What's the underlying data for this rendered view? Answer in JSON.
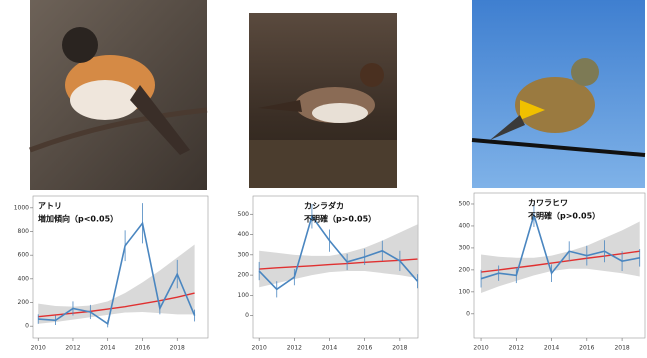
{
  "chart_data": [
    {
      "type": "line",
      "title": "アトリ",
      "subtitle": "増加傾向（p<0.05）",
      "x": [
        2010,
        2011,
        2012,
        2013,
        2014,
        2015,
        2016,
        2017,
        2018,
        2019
      ],
      "series": [
        {
          "color": "#4a86c0",
          "values": [
            60,
            50,
            150,
            120,
            20,
            680,
            870,
            150,
            440,
            90
          ],
          "errors": [
            40,
            40,
            60,
            60,
            30,
            130,
            170,
            50,
            120,
            50
          ]
        }
      ],
      "trend": [
        80,
        95,
        110,
        125,
        145,
        165,
        190,
        215,
        245,
        280
      ],
      "trend_lower": [
        20,
        35,
        55,
        75,
        95,
        115,
        120,
        110,
        100,
        100
      ],
      "trend_upper": [
        190,
        170,
        165,
        175,
        210,
        280,
        370,
        470,
        580,
        690
      ],
      "trend_color": "#e03030",
      "band_color": "#d9d9d9",
      "xlim": [
        2009.7,
        2019.77
      ],
      "xticks": [
        2010,
        2012,
        2014,
        2016,
        2018
      ],
      "ylim": [
        -100,
        1100
      ],
      "yticks": [
        0,
        200,
        400,
        600,
        800,
        1000
      ]
    },
    {
      "type": "line",
      "title": "カシラダカ",
      "subtitle": "不明確（p>0.05）",
      "x": [
        2010,
        2011,
        2012,
        2013,
        2014,
        2015,
        2016,
        2017,
        2018,
        2019
      ],
      "series": [
        {
          "color": "#4a86c0",
          "values": [
            220,
            130,
            190,
            490,
            370,
            265,
            290,
            320,
            270,
            170
          ],
          "errors": [
            45,
            40,
            40,
            60,
            55,
            40,
            40,
            50,
            50,
            35
          ]
        }
      ],
      "trend": [
        230,
        236,
        241,
        246,
        252,
        257,
        263,
        268,
        273,
        279
      ],
      "trend_lower": [
        140,
        160,
        180,
        200,
        215,
        220,
        220,
        210,
        200,
        185
      ],
      "trend_upper": [
        320,
        310,
        300,
        295,
        295,
        310,
        335,
        370,
        410,
        450
      ],
      "trend_color": "#e03030",
      "band_color": "#d9d9d9",
      "xlim": [
        2009.65,
        2019.03
      ],
      "xticks": [
        2010,
        2012,
        2014,
        2016,
        2018
      ],
      "ylim": [
        -110,
        590
      ],
      "yticks": [
        0,
        100,
        200,
        300,
        400,
        500
      ]
    },
    {
      "type": "line",
      "title": "カワラヒワ",
      "subtitle": "不明確（p>0.05）",
      "x": [
        2010,
        2011,
        2012,
        2013,
        2014,
        2015,
        2016,
        2017,
        2018,
        2019
      ],
      "series": [
        {
          "color": "#4a86c0",
          "values": [
            160,
            185,
            175,
            450,
            185,
            285,
            265,
            285,
            240,
            255
          ],
          "errors": [
            40,
            35,
            35,
            55,
            40,
            45,
            45,
            50,
            45,
            40
          ]
        }
      ],
      "trend": [
        190,
        200,
        210,
        220,
        231,
        242,
        253,
        263,
        274,
        285
      ],
      "trend_lower": [
        95,
        125,
        150,
        175,
        195,
        205,
        205,
        195,
        185,
        170
      ],
      "trend_upper": [
        270,
        260,
        255,
        255,
        265,
        285,
        310,
        345,
        380,
        420
      ],
      "trend_color": "#e03030",
      "band_color": "#d9d9d9",
      "xlim": [
        2009.6,
        2019.3
      ],
      "xticks": [
        2010,
        2012,
        2014,
        2016,
        2018
      ],
      "ylim": [
        -110,
        550
      ],
      "yticks": [
        0,
        100,
        200,
        300,
        400,
        500
      ]
    }
  ]
}
